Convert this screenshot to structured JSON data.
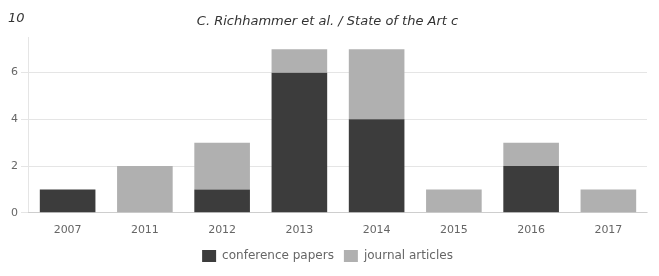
{
  "chart_data": {
    "type": "bar",
    "title": "C. Richhammer et al. / State of the Art c",
    "annotations": [
      "10"
    ],
    "categories": [
      "2007",
      "2011",
      "2012",
      "2013",
      "2014",
      "2015",
      "2016",
      "2017"
    ],
    "series": [
      {
        "name": "conference papers",
        "color": "#3c3c3c",
        "values": [
          1,
          0,
          1,
          6,
          4,
          0,
          2,
          0
        ]
      },
      {
        "name": "journal articles",
        "color": "#b0b0b0",
        "values": [
          0,
          2,
          2,
          1,
          3,
          1,
          1,
          1
        ]
      }
    ],
    "stacked": true,
    "ylim": [
      0,
      7.5
    ],
    "yticks": [
      0,
      2,
      4,
      6
    ],
    "grid": true,
    "legend": "bottom"
  }
}
